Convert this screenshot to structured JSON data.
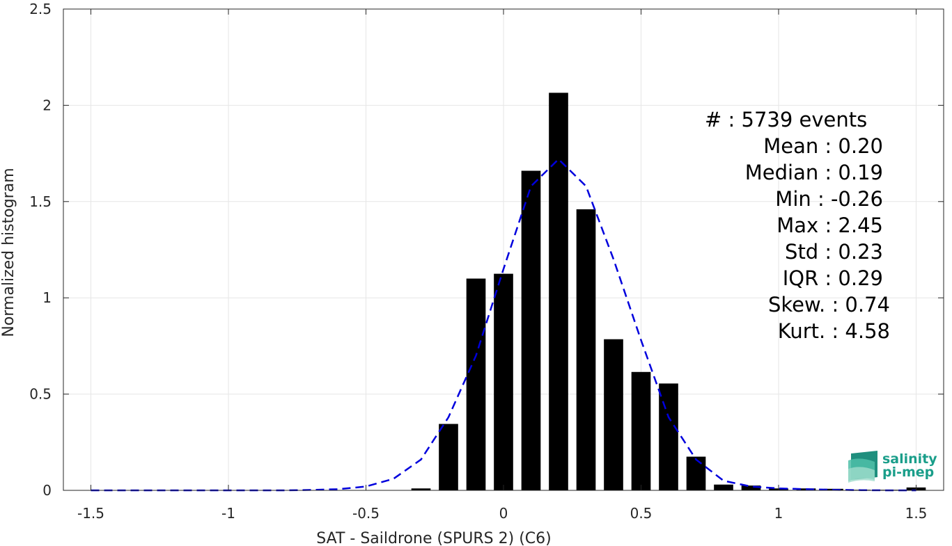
{
  "chart_data": {
    "type": "bar",
    "xlabel": "SAT - Saildrone (SPURS 2) (C6)",
    "ylabel": "Normalized histogram",
    "xlim": [
      -1.6,
      1.6
    ],
    "ylim": [
      0,
      2.5
    ],
    "grid": true,
    "x_ticks": [
      -1.5,
      -1,
      -0.5,
      0,
      0.5,
      1,
      1.5
    ],
    "x_tick_labels": [
      "-1.5",
      "-1",
      "-0.5",
      "0",
      "0.5",
      "1",
      "1.5"
    ],
    "y_ticks": [
      0,
      0.5,
      1,
      1.5,
      2,
      2.5
    ],
    "y_tick_labels": [
      "0",
      "0.5",
      "1",
      "1.5",
      "2",
      "2.5"
    ],
    "bar_width": 0.07,
    "bars": {
      "x": [
        -0.3,
        -0.2,
        -0.1,
        0.0,
        0.1,
        0.2,
        0.3,
        0.4,
        0.5,
        0.6,
        0.7,
        0.8,
        0.9,
        1.0,
        1.1,
        1.2,
        1.3,
        1.4,
        1.5
      ],
      "values": [
        0.01,
        0.345,
        1.1,
        1.125,
        1.66,
        2.065,
        1.46,
        0.785,
        0.615,
        0.555,
        0.175,
        0.03,
        0.025,
        0.01,
        0.01,
        0.008,
        0.003,
        0.003,
        0.015
      ],
      "color": "#000000"
    },
    "fit_curve": {
      "style": "dashed",
      "color": "#0000dd",
      "x": [
        -1.5,
        -1.4,
        -1.3,
        -1.2,
        -1.1,
        -1.0,
        -0.9,
        -0.8,
        -0.7,
        -0.6,
        -0.5,
        -0.4,
        -0.3,
        -0.2,
        -0.1,
        0.0,
        0.1,
        0.2,
        0.3,
        0.4,
        0.5,
        0.6,
        0.7,
        0.8,
        0.9,
        1.0,
        1.1,
        1.2,
        1.3,
        1.4,
        1.5
      ],
      "y": [
        0,
        0,
        0,
        0,
        0,
        0,
        0,
        0,
        0.002,
        0.006,
        0.02,
        0.06,
        0.16,
        0.38,
        0.7,
        1.15,
        1.58,
        1.72,
        1.58,
        1.2,
        0.78,
        0.38,
        0.16,
        0.05,
        0.02,
        0.01,
        0.006,
        0.003,
        0.001,
        0,
        0
      ]
    },
    "stats_lines": [
      "#  : 5739 events",
      "Mean : 0.20",
      "Median : 0.19",
      "Min : -0.26",
      "Max : 2.45",
      "Std : 0.23",
      "IQR : 0.29",
      "Skew. : 0.74",
      "Kurt. : 4.58"
    ]
  },
  "logo": {
    "line1": "salinity",
    "line2": "pi-mep",
    "color": "#1a9e8a"
  }
}
